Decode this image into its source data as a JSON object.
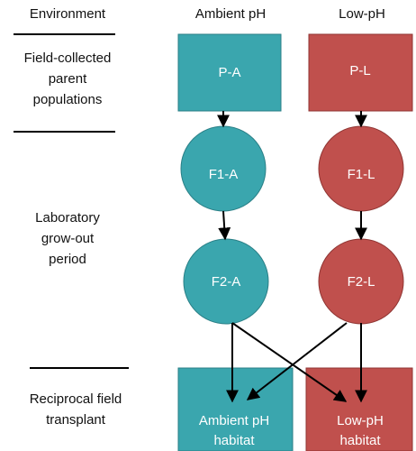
{
  "header": {
    "columns": [
      "Environment",
      "Ambient pH",
      "Low-pH"
    ]
  },
  "row_labels": [
    {
      "lines": [
        "Field-collected",
        "parent",
        "populations"
      ]
    },
    {
      "lines": [
        "Laboratory",
        "grow-out",
        "period"
      ]
    },
    {
      "lines": [
        "Reciprocal field",
        "transplant"
      ]
    }
  ],
  "nodes": [
    {
      "label": [
        "P-A"
      ]
    },
    {
      "label": [
        "P-L"
      ]
    },
    {
      "label": [
        "F1-A"
      ]
    },
    {
      "label": [
        "F1-L"
      ]
    },
    {
      "label": [
        "F2-A"
      ]
    },
    {
      "label": [
        "F2-L"
      ]
    },
    {
      "label": [
        "Ambient pH",
        "habitat"
      ]
    },
    {
      "label": [
        "Low-pH",
        "habitat"
      ]
    }
  ]
}
